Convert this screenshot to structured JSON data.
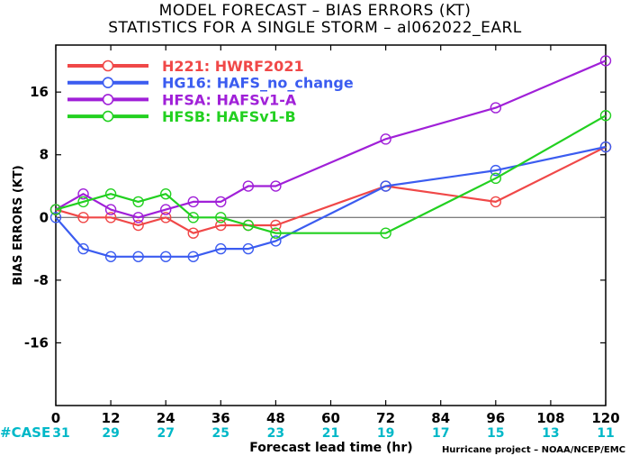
{
  "titles": {
    "line1": "MODEL FORECAST – BIAS ERRORS (KT)",
    "line2": "STATISTICS FOR A SINGLE STORM – al062022_EARL"
  },
  "footer": {
    "case_label": "#CASE",
    "credit": "Hurricane project – NOAA/NCEP/EMC"
  },
  "colors": {
    "H221": "#f04848",
    "HG16": "#3b5cf0",
    "HFSA": "#a020d8",
    "HFSB": "#22d020",
    "case_text": "#00b8c8"
  },
  "chart_data": {
    "type": "line",
    "title": "MODEL FORECAST – BIAS ERRORS (KT)",
    "subtitle": "STATISTICS FOR A SINGLE STORM – al062022_EARL",
    "xlabel": "Forecast lead time (hr)",
    "ylabel": "BIAS ERRORS (KT)",
    "xlim": [
      0,
      120
    ],
    "ylim": [
      -24,
      22
    ],
    "xticks": [
      0,
      12,
      24,
      36,
      48,
      60,
      72,
      84,
      96,
      108,
      120
    ],
    "yticks": [
      -16,
      -8,
      0,
      8,
      16
    ],
    "grid": false,
    "legend_position": "top-left",
    "case_counts": [
      {
        "x": 0,
        "n": 31
      },
      {
        "x": 12,
        "n": 29
      },
      {
        "x": 24,
        "n": 27
      },
      {
        "x": 36,
        "n": 25
      },
      {
        "x": 48,
        "n": 23
      },
      {
        "x": 60,
        "n": 21
      },
      {
        "x": 72,
        "n": 19
      },
      {
        "x": 84,
        "n": 17
      },
      {
        "x": 96,
        "n": 15
      },
      {
        "x": 108,
        "n": 13
      },
      {
        "x": 120,
        "n": 11
      }
    ],
    "series": [
      {
        "id": "H221",
        "name": "H221: HWRF2021",
        "color": "#f04848",
        "x": [
          0,
          6,
          12,
          18,
          24,
          30,
          36,
          42,
          48,
          72,
          96,
          120
        ],
        "y": [
          1,
          0,
          0,
          -1,
          0,
          -2,
          -1,
          -1,
          -1,
          4,
          2,
          9
        ]
      },
      {
        "id": "HG16",
        "name": "HG16: HAFS_no_change",
        "color": "#3b5cf0",
        "x": [
          0,
          6,
          12,
          18,
          24,
          30,
          36,
          42,
          48,
          72,
          96,
          120
        ],
        "y": [
          0,
          -4,
          -5,
          -5,
          -5,
          -5,
          -4,
          -4,
          -3,
          4,
          6,
          9
        ]
      },
      {
        "id": "HFSA",
        "name": "HFSA: HAFSv1-A",
        "color": "#a020d8",
        "x": [
          0,
          6,
          12,
          18,
          24,
          30,
          36,
          42,
          48,
          72,
          96,
          120
        ],
        "y": [
          1,
          3,
          1,
          0,
          1,
          2,
          2,
          4,
          4,
          10,
          14,
          20
        ]
      },
      {
        "id": "HFSB",
        "name": "HFSB: HAFSv1-B",
        "color": "#22d020",
        "x": [
          0,
          6,
          12,
          18,
          24,
          30,
          36,
          42,
          48,
          72,
          96,
          120
        ],
        "y": [
          1,
          2,
          3,
          2,
          3,
          0,
          0,
          -1,
          -2,
          -2,
          5,
          13
        ]
      }
    ]
  }
}
